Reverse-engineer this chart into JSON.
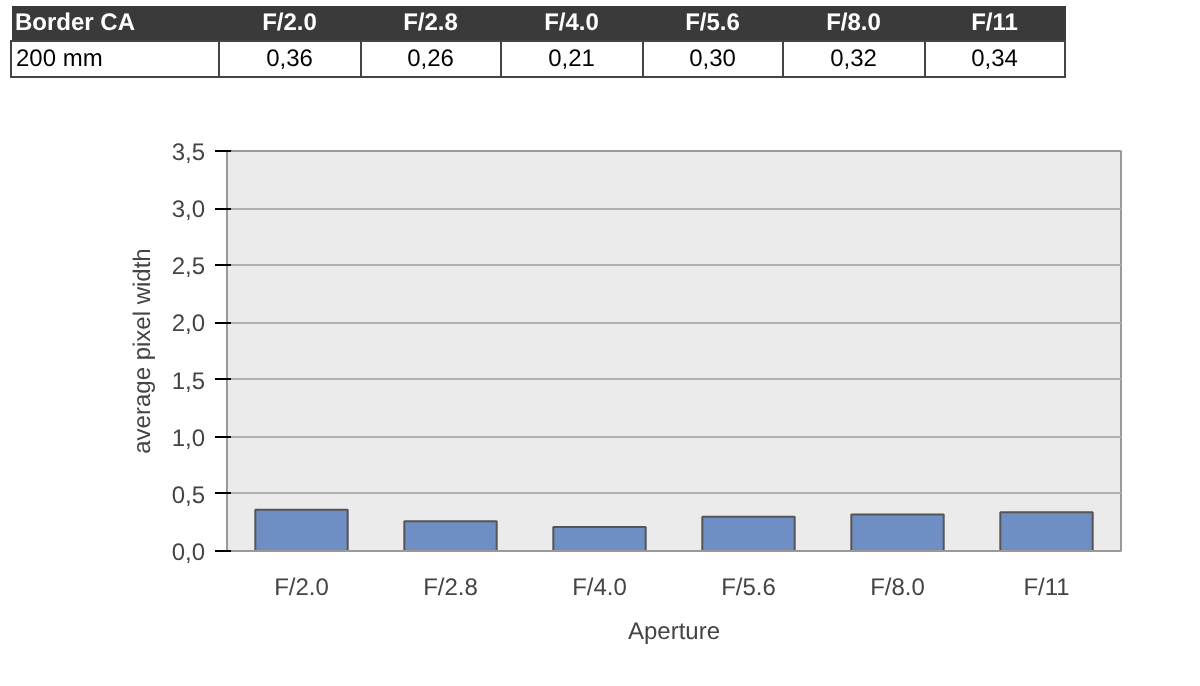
{
  "chart_data": {
    "type": "bar",
    "title": "Border CA",
    "xlabel": "Aperture",
    "ylabel": "average pixel width",
    "categories": [
      "F/2.0",
      "F/2.8",
      "F/4.0",
      "F/5.6",
      "F/8.0",
      "F/11"
    ],
    "series": [
      {
        "name": "200 mm",
        "color": "#6f8fc4",
        "values": [
          0.36,
          0.26,
          0.21,
          0.3,
          0.32,
          0.34
        ],
        "value_labels": [
          "0,36",
          "0,26",
          "0,21",
          "0,30",
          "0,32",
          "0,34"
        ]
      }
    ],
    "ylim": [
      0,
      3.5
    ],
    "yticks": [
      {
        "value": 0,
        "label": "0,0"
      },
      {
        "value": 0.5,
        "label": "0,5"
      },
      {
        "value": 1,
        "label": "1,0"
      },
      {
        "value": 1.5,
        "label": "1,5"
      },
      {
        "value": 2,
        "label": "2,0"
      },
      {
        "value": 2.5,
        "label": "2,5"
      },
      {
        "value": 3,
        "label": "3,0"
      },
      {
        "value": 3.5,
        "label": "3,5"
      }
    ],
    "grid": "y"
  }
}
